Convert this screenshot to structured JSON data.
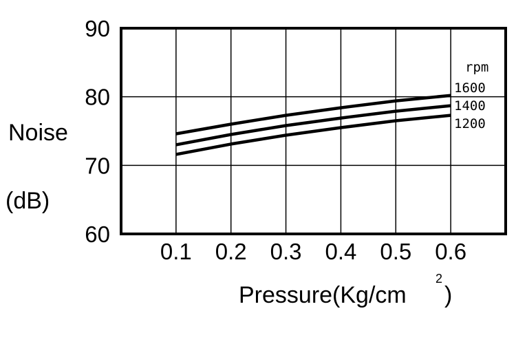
{
  "chart_data": {
    "type": "line",
    "title": "",
    "ylabel": "Noise",
    "ylabel_unit": "(dB)",
    "xlabel": "Pressure(Kg/cm",
    "xlabel_superscript": "2",
    "xlabel_close": ")",
    "xlim": [
      0.0,
      0.7
    ],
    "ylim": [
      60,
      90
    ],
    "x_ticks": [
      "0.1",
      "0.2",
      "0.3",
      "0.4",
      "0.5",
      "0.6"
    ],
    "x_tick_values": [
      0.1,
      0.2,
      0.3,
      0.4,
      0.5,
      0.6
    ],
    "y_ticks": [
      "60",
      "70",
      "80",
      "90"
    ],
    "y_tick_values": [
      60,
      70,
      80,
      90
    ],
    "grid": true,
    "legend_title": "rpm",
    "legend_placement": "right",
    "x": [
      0.1,
      0.2,
      0.3,
      0.4,
      0.5,
      0.6
    ],
    "series": [
      {
        "name": "1600",
        "values": [
          74.6,
          76.0,
          77.3,
          78.4,
          79.4,
          80.2
        ]
      },
      {
        "name": "1400",
        "values": [
          73.0,
          74.5,
          75.8,
          76.9,
          77.9,
          78.7
        ]
      },
      {
        "name": "1200",
        "values": [
          71.6,
          73.1,
          74.4,
          75.5,
          76.5,
          77.3
        ]
      }
    ],
    "line_color": "#000000"
  }
}
